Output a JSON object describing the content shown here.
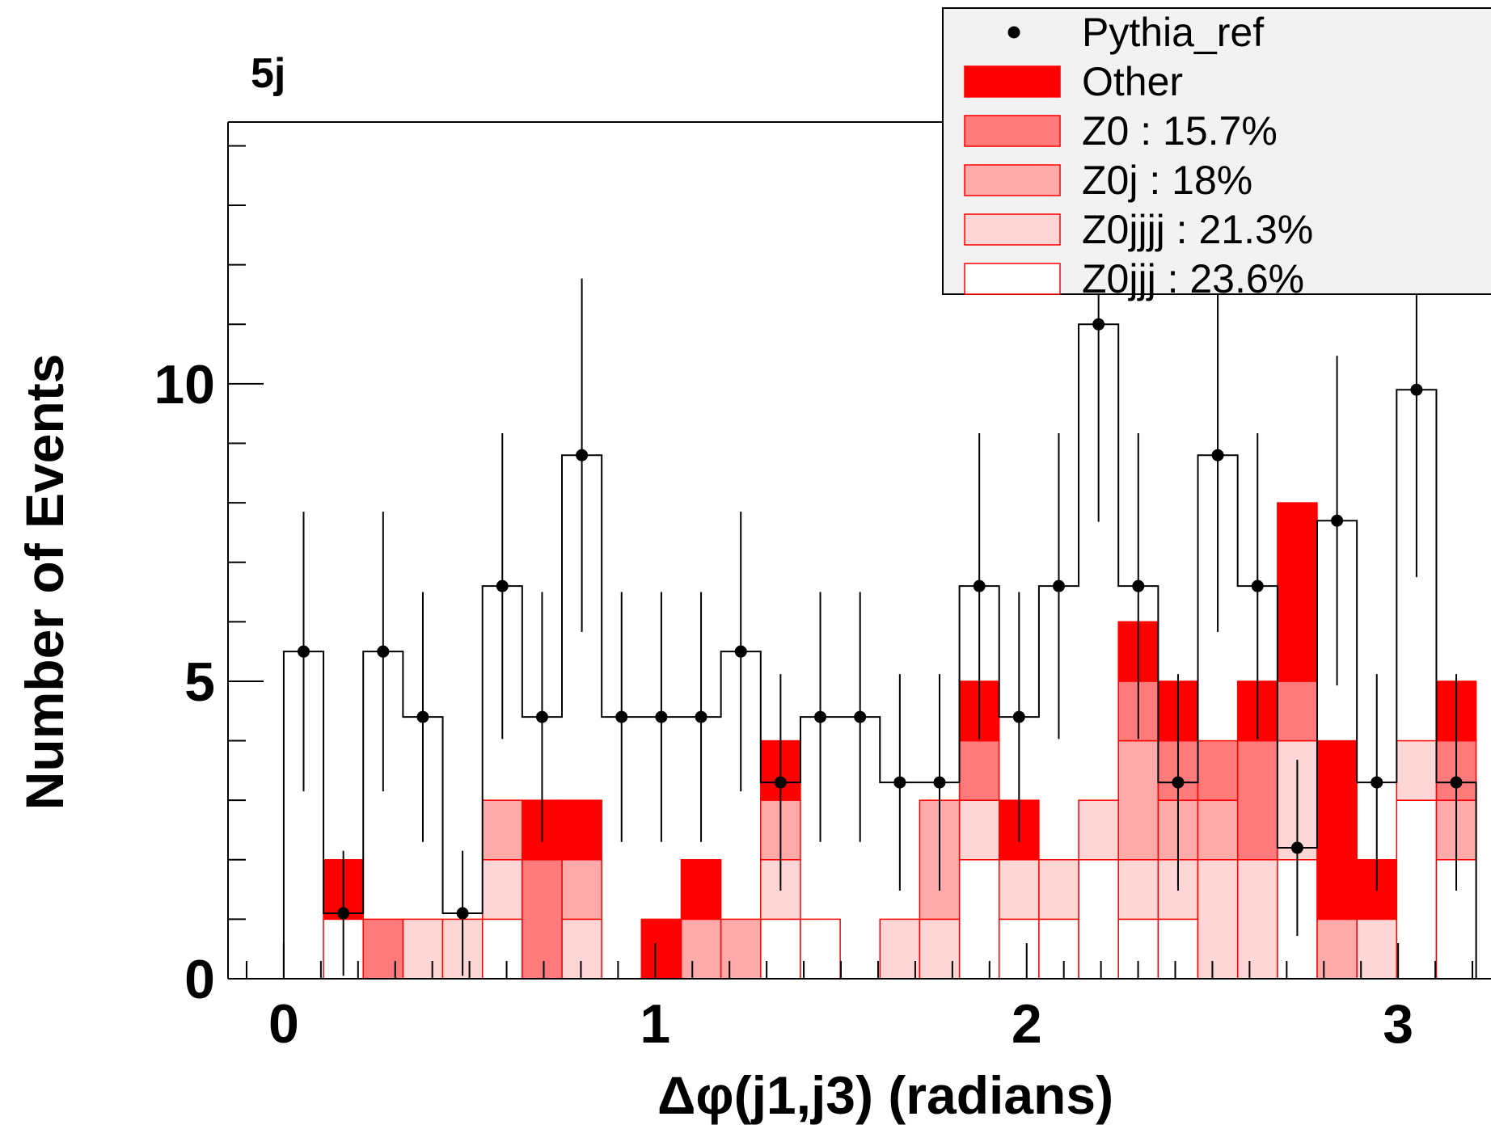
{
  "chart_data": {
    "type": "bar",
    "title": "5j",
    "xlabel": "Δφ(j1,j3) (radians)",
    "ylabel": "Number of Events",
    "xlim": [
      -0.15,
      3.25
    ],
    "ylim": [
      0,
      14.4
    ],
    "x_ticks": [
      0,
      1,
      2,
      3
    ],
    "y_ticks": [
      0,
      5,
      10
    ],
    "bin_edges": [
      0.0,
      0.107,
      0.214,
      0.321,
      0.428,
      0.535,
      0.642,
      0.749,
      0.856,
      0.963,
      1.07,
      1.177,
      1.284,
      1.391,
      1.498,
      1.605,
      1.712,
      1.819,
      1.926,
      2.033,
      2.14,
      2.247,
      2.354,
      2.461,
      2.568,
      2.675,
      2.782,
      2.889,
      2.996,
      3.103,
      3.21
    ],
    "series": [
      {
        "name": "Z0jjj : 23.6%",
        "color": "#ffffff",
        "values": [
          0,
          1,
          0,
          0,
          0,
          1,
          0,
          0,
          0,
          0,
          0,
          0,
          1,
          1,
          0,
          0,
          0,
          2,
          1,
          1,
          2,
          1,
          1,
          0,
          0,
          2,
          0,
          0,
          3,
          2
        ]
      },
      {
        "name": "Z0jjjj : 21.3%",
        "color": "#ffd6d6",
        "values": [
          0,
          0,
          0,
          1,
          1,
          1,
          0,
          1,
          0,
          0,
          0,
          0,
          1,
          0,
          0,
          1,
          1,
          1,
          1,
          1,
          1,
          1,
          1,
          2,
          2,
          2,
          0,
          1,
          1,
          0
        ]
      },
      {
        "name": "Z0j : 18%",
        "color": "#ffaaaa",
        "values": [
          0,
          0,
          0,
          0,
          0,
          1,
          0,
          1,
          0,
          0,
          1,
          1,
          1,
          0,
          0,
          0,
          2,
          0,
          0,
          0,
          0,
          2,
          1,
          1,
          0,
          0,
          1,
          0,
          0,
          1
        ]
      },
      {
        "name": "Z0 : 15.7%",
        "color": "#ff7b7b",
        "values": [
          0,
          0,
          1,
          0,
          0,
          0,
          2,
          0,
          0,
          0,
          0,
          0,
          0,
          0,
          0,
          0,
          0,
          1,
          0,
          0,
          0,
          1,
          1,
          1,
          2,
          1,
          0,
          0,
          0,
          1
        ]
      },
      {
        "name": "Other",
        "color": "#ff0000",
        "values": [
          0,
          1,
          0,
          0,
          0,
          0,
          1,
          1,
          0,
          1,
          1,
          0,
          1,
          0,
          0,
          0,
          0,
          1,
          1,
          0,
          0,
          1,
          1,
          0,
          1,
          3,
          3,
          1,
          0,
          1
        ]
      }
    ],
    "reference": {
      "name": "Pythia_ref",
      "values": [
        5.5,
        1.1,
        5.5,
        4.4,
        1.1,
        6.6,
        4.4,
        8.8,
        4.4,
        4.4,
        4.4,
        5.5,
        3.3,
        4.4,
        4.4,
        3.3,
        3.3,
        6.6,
        4.4,
        6.6,
        11.0,
        6.6,
        3.3,
        8.8,
        6.6,
        2.2,
        7.7,
        3.3,
        9.9,
        3.3
      ],
      "errors": [
        2.35,
        1.05,
        2.35,
        2.1,
        1.05,
        2.57,
        2.1,
        2.97,
        2.1,
        2.1,
        2.1,
        2.35,
        1.82,
        2.1,
        2.1,
        1.82,
        1.82,
        2.57,
        2.1,
        2.57,
        3.32,
        2.57,
        1.82,
        2.97,
        2.57,
        1.48,
        2.77,
        1.82,
        3.15,
        1.82
      ]
    },
    "legend": {
      "position": "top-right",
      "entries": [
        "Pythia_ref",
        "Other",
        "Z0 : 15.7%",
        "Z0j : 18%",
        "Z0jjjj : 21.3%",
        "Z0jjj : 23.6%"
      ]
    },
    "grid": false
  },
  "colors": {
    "frame": "#000000",
    "legend_background": "#f2f2f2",
    "fill_outline": "#ff0000"
  }
}
